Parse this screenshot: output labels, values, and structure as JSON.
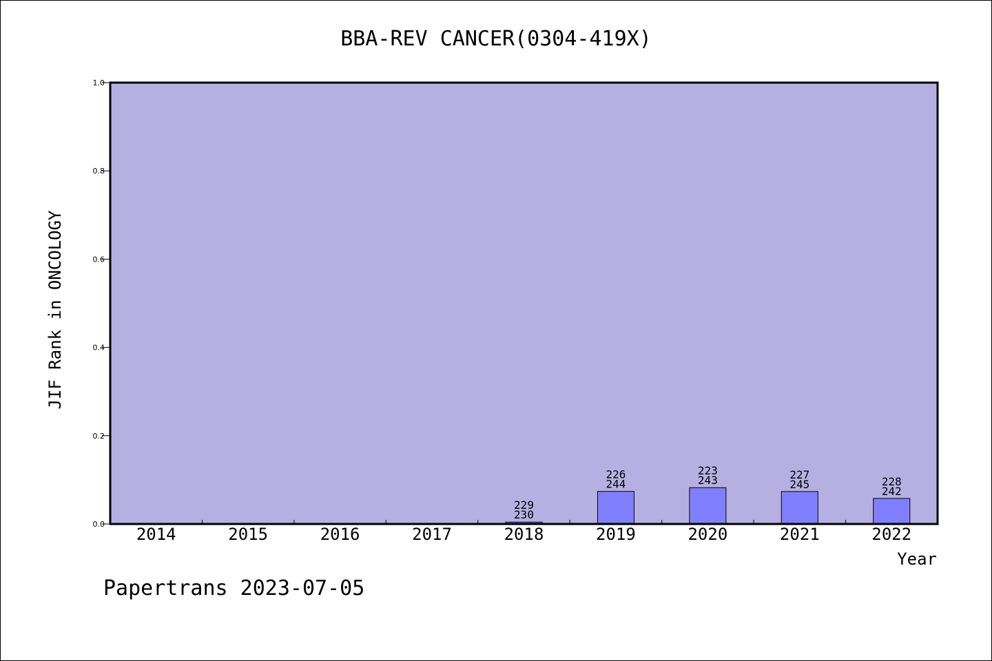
{
  "chart_data": {
    "type": "bar",
    "title": "BBA-REV CANCER(0304-419X)",
    "xlabel": "Year",
    "ylabel": "JIF Rank in ONCOLOGY",
    "categories": [
      "2014",
      "2015",
      "2016",
      "2017",
      "2018",
      "2019",
      "2020",
      "2021",
      "2022"
    ],
    "values": [
      0,
      0,
      0,
      0,
      0.0043,
      0.0738,
      0.0823,
      0.0735,
      0.0579
    ],
    "ranks": [
      "",
      "",
      "",
      "",
      "229",
      "226",
      "223",
      "227",
      "228"
    ],
    "totals": [
      "",
      "",
      "",
      "",
      "230",
      "244",
      "243",
      "245",
      "242"
    ],
    "ylim": [
      0,
      1.0
    ],
    "yticks": [
      "0.0",
      "0.2",
      "0.4",
      "0.6",
      "0.8",
      "1.0"
    ],
    "plot_background": "#b6b0e2",
    "bar_color": "#8080ff",
    "grid": false
  },
  "footer": {
    "text": "Papertrans 2023-07-05"
  }
}
